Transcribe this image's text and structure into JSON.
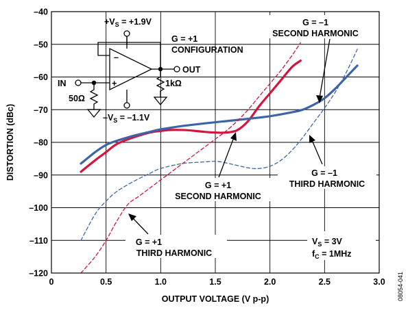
{
  "chart_data": {
    "type": "line",
    "xlabel": "OUTPUT VOLTAGE (V p-p)",
    "ylabel": "DISTORTION (dBc)",
    "xlim": [
      0,
      3.0
    ],
    "ylim": [
      -120,
      -40
    ],
    "x_ticks": [
      "0",
      "0.5",
      "1.0",
      "1.5",
      "2.0",
      "2.5",
      "3.0"
    ],
    "y_ticks": [
      "–40",
      "–50",
      "–60",
      "–70",
      "–80",
      "–90",
      "–100",
      "–110",
      "–120"
    ],
    "grid": true,
    "series": [
      {
        "name": "G = +1 SECOND HARMONIC",
        "color": "#d4143c",
        "style": "solid",
        "x": [
          0.27,
          0.4,
          0.5,
          0.6,
          0.75,
          0.9,
          1.0,
          1.1,
          1.25,
          1.4,
          1.5,
          1.6,
          1.7,
          1.8,
          1.9,
          2.0,
          2.1,
          2.2,
          2.28
        ],
        "y": [
          -89,
          -85.5,
          -83,
          -80.5,
          -78.5,
          -77,
          -76.5,
          -76.2,
          -76.3,
          -76.8,
          -77,
          -77,
          -76.3,
          -73.5,
          -69,
          -65,
          -61,
          -57,
          -55
        ]
      },
      {
        "name": "G = –1 SECOND HARMONIC",
        "color": "#3e64a8",
        "style": "solid",
        "x": [
          0.27,
          0.4,
          0.5,
          0.6,
          0.75,
          0.9,
          1.0,
          1.2,
          1.4,
          1.6,
          1.8,
          2.0,
          2.2,
          2.3,
          2.4,
          2.5,
          2.6,
          2.7,
          2.8
        ],
        "y": [
          -86.5,
          -83,
          -80.8,
          -79.5,
          -78,
          -76.8,
          -76,
          -75,
          -74.2,
          -73.5,
          -72.8,
          -72,
          -70.8,
          -70,
          -68.5,
          -66.5,
          -63.5,
          -60,
          -56.5
        ]
      },
      {
        "name": "G = +1 THIRD HARMONIC",
        "color": "#d4143c",
        "style": "dashed",
        "x": [
          0.27,
          0.4,
          0.5,
          0.6,
          0.7,
          0.8,
          0.9,
          1.0,
          1.1,
          1.2,
          1.3,
          1.4,
          1.5,
          1.6,
          1.7,
          1.8,
          1.9,
          2.0,
          2.1,
          2.2,
          2.28
        ],
        "y": [
          -120,
          -115,
          -110,
          -104,
          -99,
          -96.5,
          -94,
          -91.5,
          -89,
          -86.5,
          -84,
          -81.5,
          -79,
          -76.5,
          -73.5,
          -70,
          -66,
          -62,
          -58,
          -53.5,
          -49.5
        ]
      },
      {
        "name": "G = –1 THIRD HARMONIC",
        "color": "#3e64a8",
        "style": "dashed",
        "x": [
          0.27,
          0.4,
          0.5,
          0.6,
          0.75,
          0.9,
          1.0,
          1.2,
          1.4,
          1.5,
          1.6,
          1.8,
          1.9,
          2.0,
          2.1,
          2.2,
          2.3,
          2.4,
          2.5,
          2.6,
          2.7,
          2.8
        ],
        "y": [
          -110,
          -102,
          -98,
          -95,
          -92,
          -89.5,
          -88,
          -86.5,
          -86,
          -85.8,
          -86.3,
          -87.8,
          -88,
          -87.3,
          -85.5,
          -82.5,
          -78.5,
          -74,
          -69.5,
          -64.5,
          -58.5,
          -51.5
        ]
      }
    ],
    "annotations": {
      "g_minus1_second": [
        "G = –1",
        "SECOND HARMONIC"
      ],
      "g_plus1_second": [
        "G = +1",
        "SECOND HARMONIC"
      ],
      "g_minus1_third": [
        "G = –1",
        "THIRD HARMONIC"
      ],
      "g_plus1_third": [
        "G = +1",
        "THIRD HARMONIC"
      ],
      "vs": "V",
      "vs_sub": "S",
      "vs_val": " = 3V",
      "fc": "f",
      "fc_sub": "C",
      "fc_val": " = 1MHz"
    }
  },
  "schematic": {
    "vs_plus": "+V",
    "vs_plus_sub": "S",
    "vs_plus_val": " = +1.9V",
    "vs_minus": "–V",
    "vs_minus_sub": "S",
    "vs_minus_val": " = –1.1V",
    "config": [
      "G = +1",
      "CONFIGURATION"
    ],
    "in": "IN",
    "out": "OUT",
    "r_in": "50Ω",
    "r_load": "1kΩ",
    "minus_sign": "–",
    "plus_sign": "+"
  },
  "figure_code": "08054-041"
}
